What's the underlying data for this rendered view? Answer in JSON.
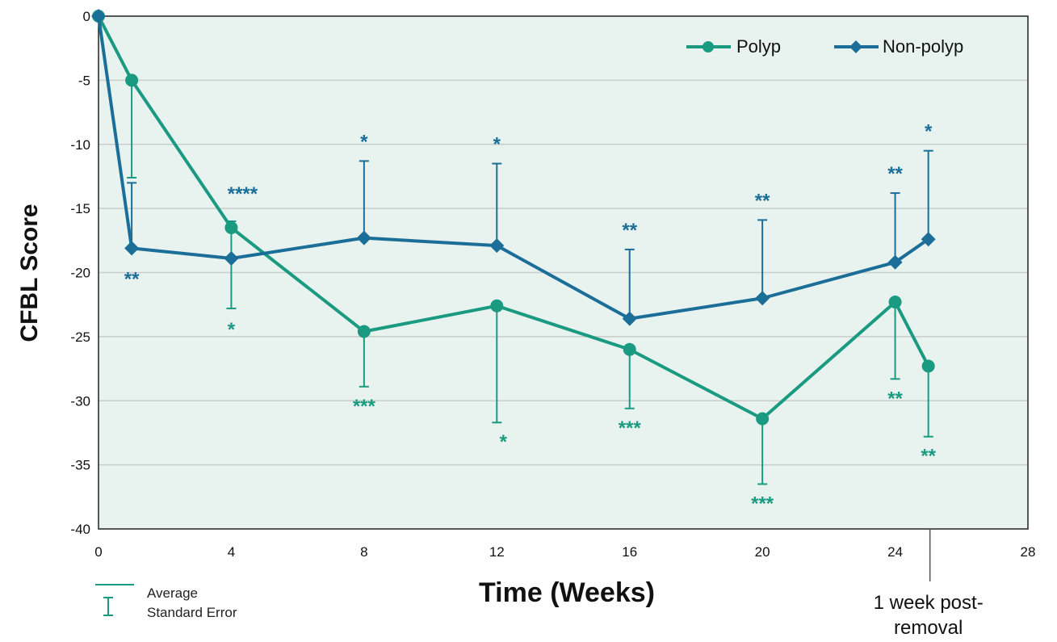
{
  "chart_data": {
    "type": "line",
    "title": "",
    "xlabel": "Time (Weeks)",
    "ylabel": "CFBL Score",
    "xlim": [
      0,
      28
    ],
    "ylim": [
      -40,
      0
    ],
    "xticks": [
      0,
      4,
      8,
      12,
      16,
      20,
      24,
      28
    ],
    "yticks": [
      0,
      -5,
      -10,
      -15,
      -20,
      -25,
      -30,
      -35,
      -40
    ],
    "grid": true,
    "legend_position": "top-right",
    "colors": {
      "polyp": "#1a9a80",
      "nonpolyp": "#1a6e98",
      "plot_bg": "#e8f3f0",
      "grid": "#c9cccb"
    },
    "series": [
      {
        "name": "Polyp",
        "marker": "circle",
        "x": [
          0,
          1,
          4,
          8,
          12,
          16,
          20,
          24,
          25
        ],
        "y": [
          0,
          -5.0,
          -16.5,
          -24.6,
          -22.6,
          -26.0,
          -31.4,
          -22.3,
          -27.3
        ],
        "err_low": [
          null,
          -12.6,
          -22.8,
          -28.9,
          -31.7,
          -30.6,
          -36.5,
          -28.3,
          -32.8
        ],
        "err_high": [
          null,
          null,
          -16.0,
          null,
          null,
          null,
          null,
          null,
          null
        ],
        "significance": [
          "",
          "",
          "*",
          "***",
          "*",
          "***",
          "***",
          "**",
          "**"
        ]
      },
      {
        "name": "Non-polyp",
        "marker": "diamond",
        "x": [
          0,
          1,
          4,
          8,
          12,
          16,
          20,
          24,
          25
        ],
        "y": [
          0,
          -18.1,
          -18.9,
          -17.3,
          -17.9,
          -23.6,
          -22.0,
          -19.2,
          -17.4
        ],
        "err_low": [
          null,
          -13.0,
          null,
          -11.3,
          -11.5,
          -18.2,
          -15.9,
          -13.8,
          -10.5
        ],
        "significance": [
          "",
          "**",
          "****",
          "*",
          "*",
          "**",
          "**",
          "**",
          "*"
        ]
      }
    ],
    "annotation": {
      "x": 25,
      "text_line1": "1 week post-",
      "text_line2": "removal"
    },
    "key": {
      "average": "Average",
      "standard_error": "Standard Error"
    }
  }
}
